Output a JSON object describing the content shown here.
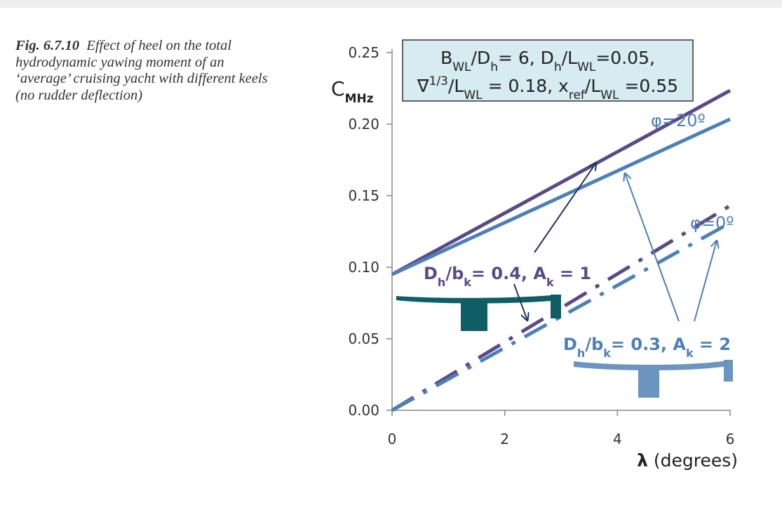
{
  "caption": {
    "label": "Fig. 6.7.10",
    "text": "Effect of heel on the total hydrodynamic yawing moment of an ‘average’ cruising yacht with different keels (no rudder deflection)"
  },
  "colors": {
    "keel_small": "#5a4a86",
    "keel_large": "#4c80b7",
    "param_box_fill": "#d6ebf2",
    "keel_silhouette_dark": "#0f5e66",
    "keel_silhouette_light": "#6b95bf",
    "annotation_arrow": "#1e3462"
  },
  "chart_data": {
    "type": "line",
    "ylabel": "C",
    "ylabel_sub": "MHz",
    "xlabel_symbol": "λ",
    "xlabel_unit": "(degrees)",
    "xlim": [
      0,
      6
    ],
    "ylim": [
      0,
      0.25
    ],
    "x_ticks": [
      "0",
      "2",
      "4",
      "6"
    ],
    "y_ticks": [
      "0.00",
      "0.05",
      "0.10",
      "0.15",
      "0.20",
      "0.25"
    ],
    "grid": false,
    "params": {
      "line1": {
        "a": "B",
        "a_sub": "WL",
        "b": "/D",
        "b_sub": "h",
        "c": "= 6,  D",
        "c_sub": "h",
        "d": "/L",
        "d_sub": "WL",
        "e": "=0.05,"
      },
      "line2": {
        "a": "∇",
        "a_sup": "1/3",
        "b": "/L",
        "b_sub": "WL",
        "c": " = 0.18, x",
        "c_sub": "ref",
        "d": "/L",
        "d_sub": "WL",
        "e": " =0.55"
      }
    },
    "heel_labels": {
      "heel_20": "φ=20º",
      "heel_0": "φ=0º"
    },
    "keel_labels": {
      "keel_small": {
        "a": "D",
        "a_sub": "h",
        "b": "/b",
        "b_sub": "k",
        "c": "= 0.4, A",
        "c_sub": "k",
        "d": " = 1"
      },
      "keel_large": {
        "a": "D",
        "a_sub": "h",
        "b": "/b",
        "b_sub": "k",
        "c": "= 0.3, A",
        "c_sub": "k",
        "d": " = 2"
      }
    },
    "series": [
      {
        "keel": "keel_small",
        "heel": "heel_20",
        "style": "solid",
        "x": [
          0,
          6
        ],
        "y": [
          0.095,
          0.2235
        ]
      },
      {
        "keel": "keel_large",
        "heel": "heel_20",
        "style": "solid",
        "x": [
          0,
          6
        ],
        "y": [
          0.095,
          0.2035
        ]
      },
      {
        "keel": "keel_small",
        "heel": "heel_0",
        "style": "dashdot",
        "x": [
          0,
          6
        ],
        "y": [
          0.0,
          0.143
        ]
      },
      {
        "keel": "keel_large",
        "heel": "heel_0",
        "style": "dashdot",
        "x": [
          0,
          6
        ],
        "y": [
          0.0,
          0.131
        ]
      }
    ]
  }
}
